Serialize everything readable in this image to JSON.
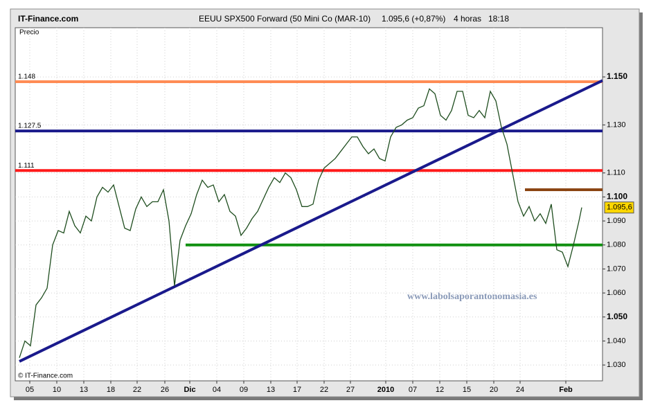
{
  "chart_data": {
    "type": "line",
    "site": "IT-Finance.com",
    "title": "EEUU SPX500 Forward (50 Mini Co (MAR-10)",
    "quote": "1.095,6 (+0,87%)",
    "timeframe": "4 horas",
    "time": "18:18",
    "y_label": "Precio",
    "copyright": "© IT-Finance.com",
    "watermark": "www.labolsaporantonomasia.es",
    "xlim": [
      0,
      212
    ],
    "ylim": [
      1023.4,
      1170.5
    ],
    "xticks": [
      {
        "value": 5.25,
        "label": "05"
      },
      {
        "value": 15,
        "label": "10"
      },
      {
        "value": 24.75,
        "label": "13"
      },
      {
        "value": 34.5,
        "label": "18"
      },
      {
        "value": 44,
        "label": "22"
      },
      {
        "value": 54,
        "label": "26"
      },
      {
        "value": 63,
        "label": "Dic",
        "bold": true
      },
      {
        "value": 72.75,
        "label": "04"
      },
      {
        "value": 82.5,
        "label": "09"
      },
      {
        "value": 92.25,
        "label": "13"
      },
      {
        "value": 101.75,
        "label": "17"
      },
      {
        "value": 111.5,
        "label": "22"
      },
      {
        "value": 121,
        "label": "27"
      },
      {
        "value": 133.75,
        "label": "2010",
        "bold": true
      },
      {
        "value": 143.5,
        "label": "07"
      },
      {
        "value": 153.25,
        "label": "12"
      },
      {
        "value": 163,
        "label": "15"
      },
      {
        "value": 172.75,
        "label": "20"
      },
      {
        "value": 182.25,
        "label": "24"
      },
      {
        "value": 198.75,
        "label": "Feb",
        "bold": true
      }
    ],
    "yticks": [
      {
        "value": 1150,
        "label": "1.150",
        "bold": true
      },
      {
        "value": 1130,
        "label": "1.130"
      },
      {
        "value": 1110,
        "label": "1.110"
      },
      {
        "value": 1100,
        "label": "1.100",
        "bold": true
      },
      {
        "value": 1090,
        "label": "1.090"
      },
      {
        "value": 1080,
        "label": "1.080"
      },
      {
        "value": 1070,
        "label": "1.070"
      },
      {
        "value": 1060,
        "label": "1.060"
      },
      {
        "value": 1050,
        "label": "1.050",
        "bold": true
      },
      {
        "value": 1040,
        "label": "1.040"
      },
      {
        "value": 1030,
        "label": "1.030"
      }
    ],
    "grid": true,
    "series": [
      {
        "color": "#1e4d1e",
        "x": [
          1.5,
          3.5,
          5.5,
          7.5,
          9.5,
          11.5,
          13.5,
          15.5,
          17.5,
          19.5,
          21.5,
          23.5,
          25.5,
          27.5,
          29.5,
          31.5,
          33.5,
          35.5,
          37.5,
          39.5,
          41.5,
          43.5,
          45.5,
          47.5,
          49.5,
          51.5,
          53.5,
          55.5,
          57.5,
          59.5,
          61.5,
          63.5,
          65.5,
          67.5,
          69.5,
          71.5,
          73.5,
          75.5,
          77.5,
          79.5,
          81.5,
          83.5,
          85.5,
          87.5,
          89.5,
          91.5,
          93.5,
          95.5,
          97.5,
          99.5,
          101.5,
          103.5,
          105.5,
          107.5,
          109.5,
          111.5,
          113.5,
          115.5,
          117.5,
          119.5,
          121.5,
          123.5,
          125.5,
          127.5,
          129.5,
          131.5,
          133.5,
          135.5,
          137.5,
          139.5,
          141.5,
          143.5,
          145.5,
          147.5,
          149.5,
          151.5,
          153.5,
          155.5,
          157.5,
          159.5,
          161.5,
          163.5,
          165.5,
          167.5,
          169.5,
          171.5,
          173.5,
          175.5,
          177.5,
          179.5,
          181.5,
          183.5,
          185.5,
          187.5,
          189.5,
          191.5,
          193.5,
          195.5,
          197.5,
          199.5,
          201.5,
          203.5,
          204.5
        ],
        "values": [
          1033,
          1040,
          1038,
          1055,
          1058,
          1062,
          1080,
          1086,
          1085,
          1094,
          1088,
          1085,
          1092,
          1090,
          1100,
          1104,
          1102,
          1105,
          1096,
          1087,
          1086,
          1095,
          1100,
          1096,
          1098,
          1098,
          1103,
          1090,
          1063,
          1082,
          1088,
          1093,
          1101,
          1107,
          1104,
          1105,
          1098,
          1101,
          1094,
          1092,
          1084,
          1087,
          1091,
          1094,
          1099,
          1104,
          1108,
          1106,
          1110,
          1108,
          1103,
          1096,
          1096,
          1097,
          1107,
          1112,
          1114,
          1116,
          1119,
          1122,
          1125,
          1125,
          1121,
          1118,
          1120,
          1116,
          1115,
          1125,
          1129,
          1130,
          1132,
          1133,
          1137,
          1138,
          1145,
          1143,
          1134,
          1132,
          1136,
          1144,
          1144,
          1134,
          1133,
          1136,
          1133,
          1144,
          1140,
          1129,
          1122,
          1110,
          1098,
          1092,
          1096,
          1090,
          1093,
          1089,
          1097,
          1078,
          1077,
          1071,
          1080,
          1090,
          1095.6
        ]
      }
    ],
    "levels": [
      {
        "value": 1148,
        "label": "1.148",
        "color": "#ff8c55",
        "from": 0
      },
      {
        "value": 1127.5,
        "label": "1.127.5",
        "color": "#1a1a8c",
        "from": 0
      },
      {
        "value": 1111,
        "label": "1.111",
        "color": "#ff1a1a",
        "from": 0
      },
      {
        "value": 1103,
        "color": "#8b4513",
        "from": 184
      },
      {
        "value": 1080,
        "color": "#119011",
        "from": 61.5
      }
    ],
    "trendline": {
      "x": [
        1.5,
        212
      ],
      "y": [
        1031.5,
        1148.5
      ],
      "color": "#1a1a8c"
    },
    "last_price": {
      "value": 1095.6,
      "label": "1.095,6"
    }
  }
}
